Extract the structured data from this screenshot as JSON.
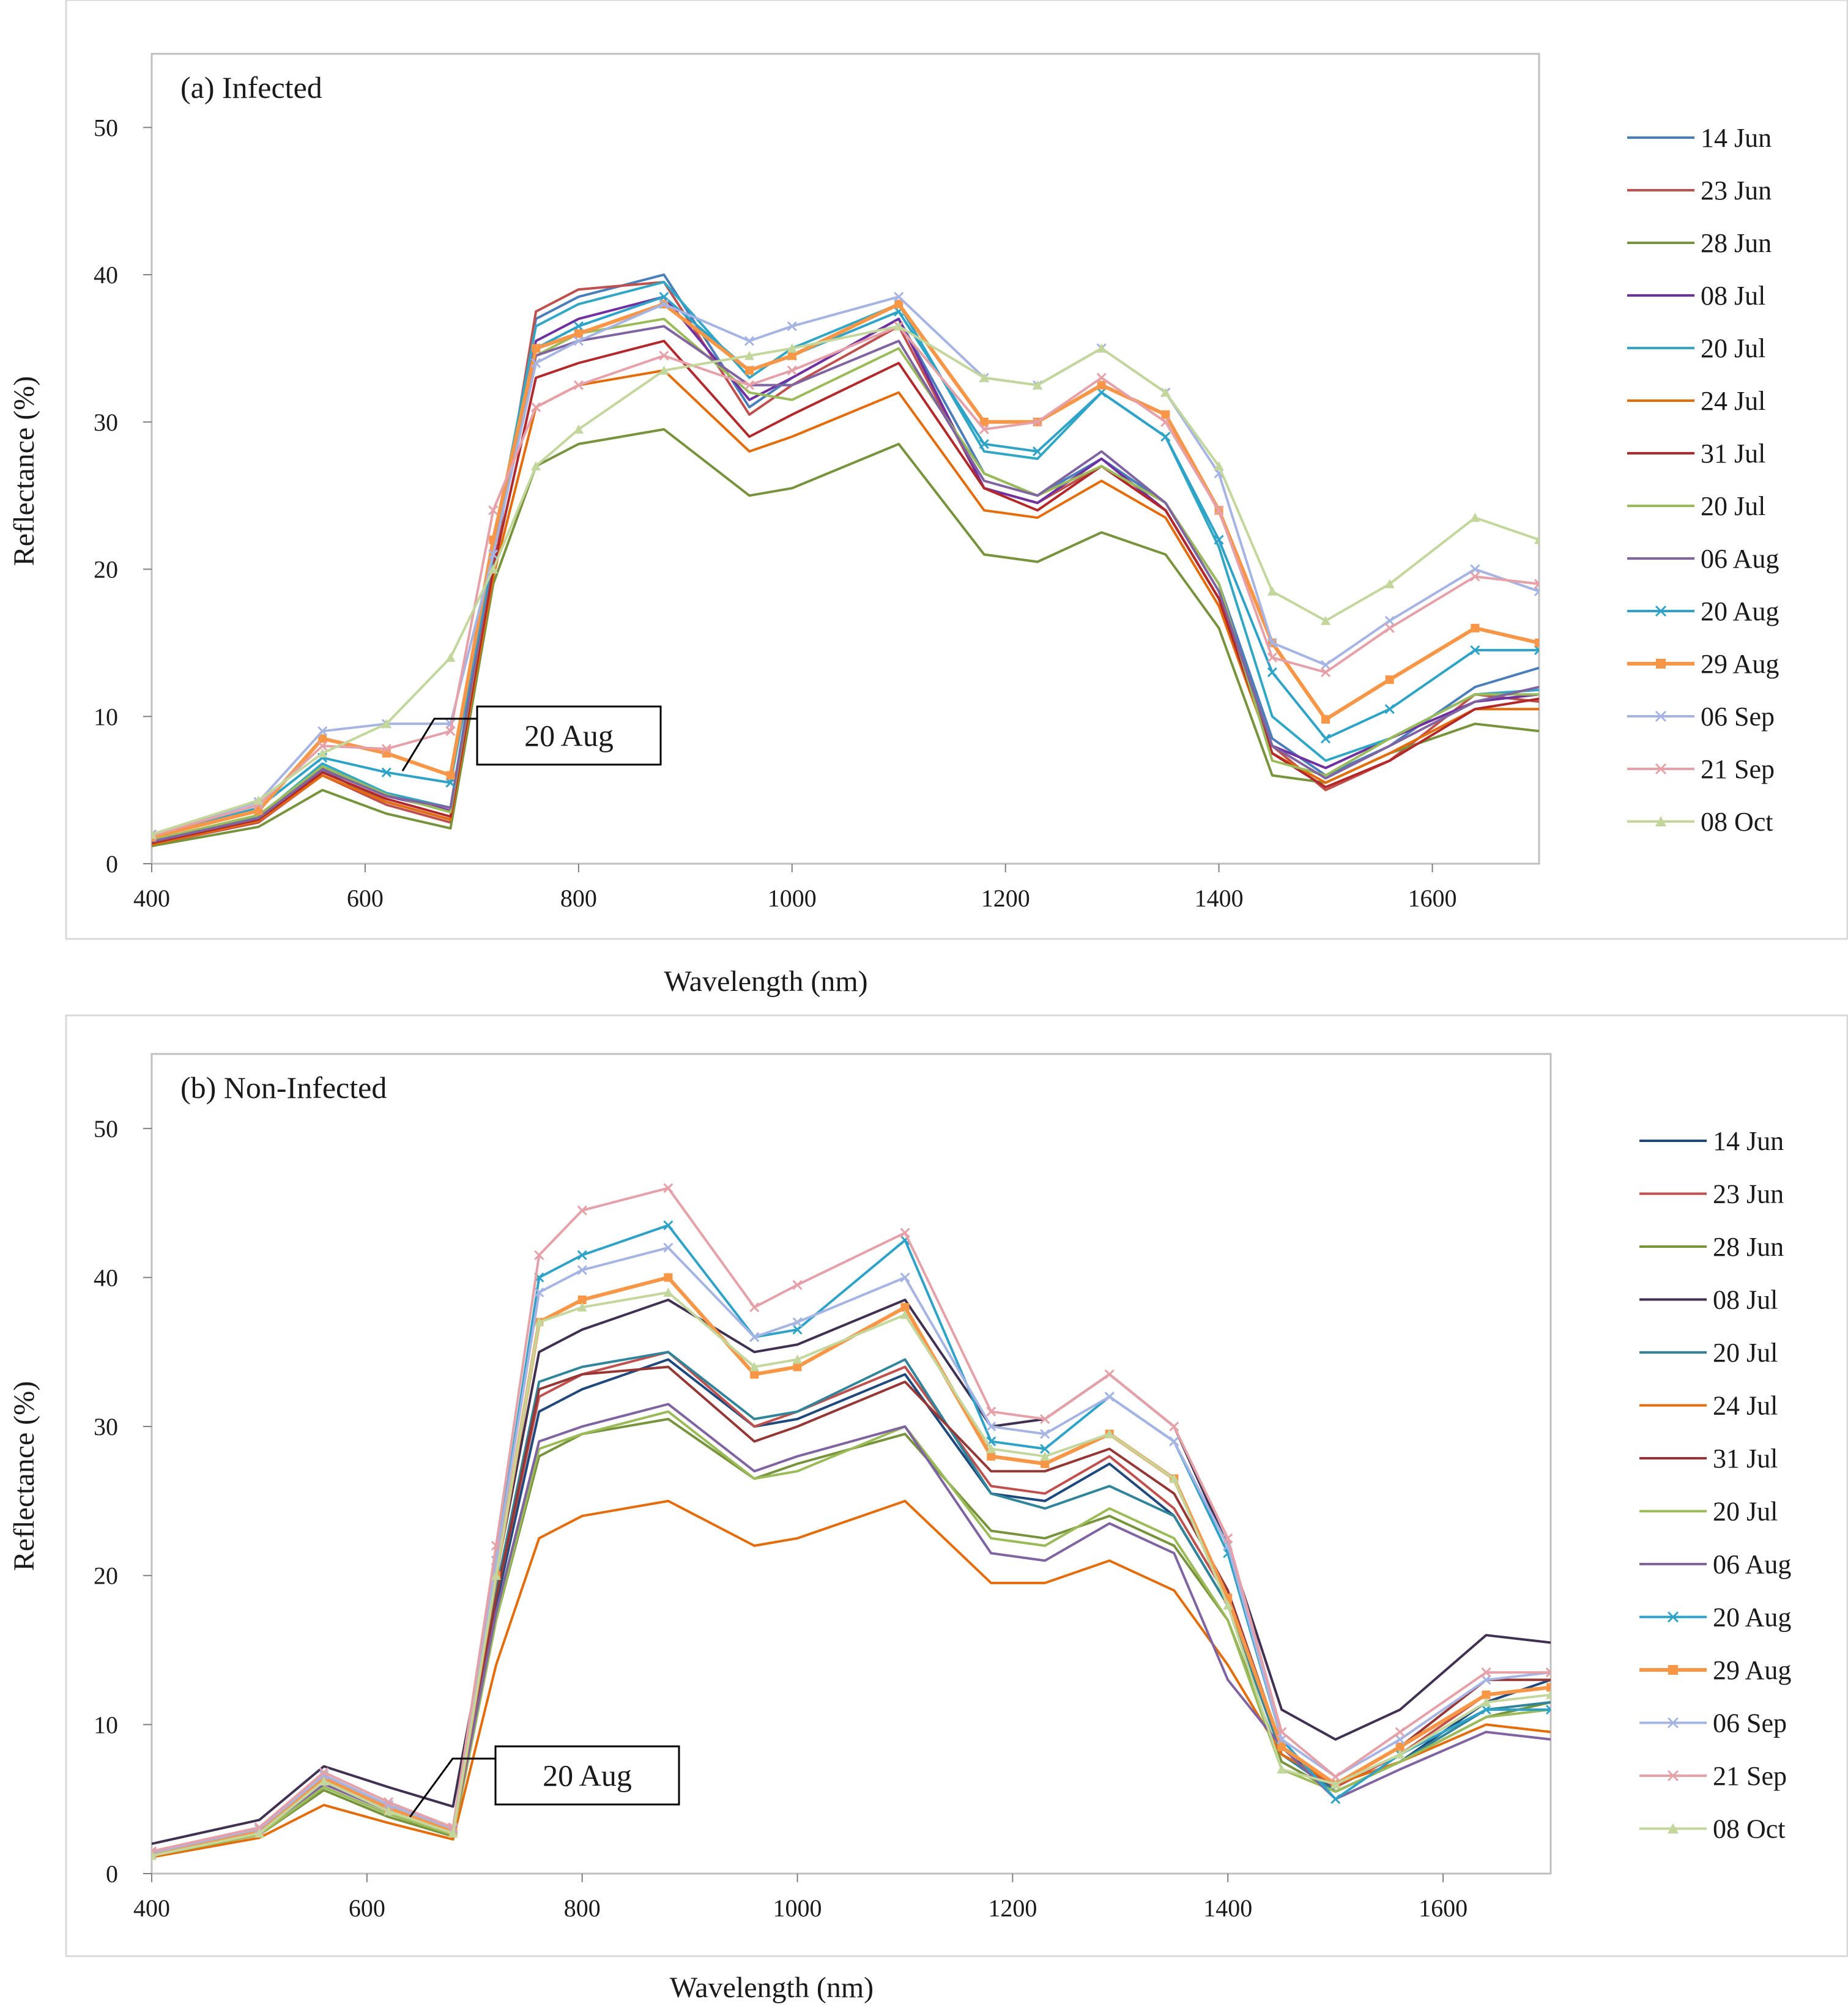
{
  "chart_data": [
    {
      "type": "line",
      "title": "(a) Infected",
      "xlabel": "Wavelength (nm)",
      "ylabel": "Reflectance (%)",
      "xlim": [
        400,
        1700
      ],
      "ylim": [
        0,
        55
      ],
      "x_ticks": [
        "400",
        "600",
        "800",
        "1000",
        "1200",
        "1400",
        "1600"
      ],
      "y_ticks": [
        "0",
        "10",
        "20",
        "30",
        "40",
        "50"
      ],
      "grid": false,
      "legend_position": "right",
      "annotation": {
        "text": "20 Aug",
        "x": 635,
        "y": 6.3
      },
      "x": [
        400,
        500,
        560,
        620,
        680,
        720,
        760,
        800,
        880,
        960,
        1000,
        1100,
        1180,
        1230,
        1290,
        1350,
        1400,
        1450,
        1500,
        1560,
        1640,
        1700
      ],
      "series": [
        {
          "name": "14 Jun",
          "color": "#4a7ebb",
          "marker": "none",
          "values": [
            1.5,
            3.0,
            6.3,
            4.2,
            3.0,
            20.0,
            37.0,
            38.5,
            40.0,
            31.0,
            33.0,
            37.0,
            26.5,
            25.0,
            27.5,
            24.5,
            19.0,
            8.5,
            6.0,
            8.0,
            12.0,
            13.3
          ]
        },
        {
          "name": "23 Jun",
          "color": "#c0504d",
          "marker": "none",
          "values": [
            1.3,
            2.8,
            6.0,
            4.0,
            2.8,
            20.0,
            37.5,
            39.0,
            39.5,
            30.5,
            32.5,
            36.5,
            25.5,
            24.5,
            27.0,
            24.0,
            18.0,
            8.0,
            5.0,
            7.0,
            11.5,
            11.0
          ]
        },
        {
          "name": "28 Jun",
          "color": "#77933c",
          "marker": "none",
          "values": [
            1.2,
            2.5,
            5.0,
            3.4,
            2.4,
            19.0,
            27.0,
            28.5,
            29.5,
            25.0,
            25.5,
            28.5,
            21.0,
            20.5,
            22.5,
            21.0,
            16.0,
            6.0,
            5.5,
            7.5,
            9.5,
            9.0
          ]
        },
        {
          "name": "08 Jul",
          "color": "#7030a0",
          "marker": "none",
          "values": [
            1.4,
            3.1,
            6.5,
            4.6,
            3.6,
            21.0,
            35.5,
            37.0,
            38.5,
            31.5,
            33.0,
            37.0,
            25.5,
            24.5,
            27.5,
            24.0,
            18.0,
            8.0,
            6.5,
            8.5,
            11.0,
            11.5
          ]
        },
        {
          "name": "20 Jul",
          "color": "#31a7c6",
          "marker": "none",
          "values": [
            1.6,
            3.2,
            6.8,
            4.8,
            3.8,
            21.5,
            36.5,
            38.0,
            39.5,
            33.0,
            35.0,
            38.0,
            28.0,
            27.5,
            32.0,
            29.0,
            21.5,
            10.0,
            7.0,
            8.5,
            11.5,
            11.8
          ]
        },
        {
          "name": "24 Jul",
          "color": "#e46c0a",
          "marker": "none",
          "values": [
            1.3,
            2.9,
            6.0,
            4.2,
            3.0,
            19.5,
            31.0,
            32.5,
            33.5,
            28.0,
            29.0,
            32.0,
            24.0,
            23.5,
            26.0,
            23.5,
            17.5,
            7.5,
            5.5,
            7.5,
            10.5,
            10.5
          ]
        },
        {
          "name": "31 Jul",
          "color": "#b3292b",
          "marker": "none",
          "values": [
            1.4,
            3.0,
            6.2,
            4.4,
            3.2,
            20.0,
            33.0,
            34.0,
            35.5,
            29.0,
            30.5,
            34.0,
            25.5,
            24.0,
            27.0,
            24.0,
            18.0,
            7.5,
            5.2,
            7.0,
            10.5,
            11.2
          ]
        },
        {
          "name": "20 Jul",
          "color": "#9bbb59",
          "marker": "none",
          "values": [
            1.6,
            3.3,
            6.6,
            4.7,
            3.5,
            21.0,
            34.5,
            36.0,
            37.0,
            32.0,
            31.5,
            35.0,
            26.5,
            25.0,
            27.0,
            24.5,
            19.0,
            7.0,
            6.0,
            8.5,
            11.5,
            11.5
          ]
        },
        {
          "name": "06 Aug",
          "color": "#8064a2",
          "marker": "none",
          "values": [
            1.5,
            3.1,
            6.4,
            4.6,
            3.8,
            21.0,
            34.5,
            35.5,
            36.5,
            32.5,
            32.5,
            35.5,
            26.0,
            25.0,
            28.0,
            24.5,
            18.5,
            8.0,
            5.8,
            8.0,
            11.0,
            12.0
          ]
        },
        {
          "name": "20 Aug",
          "color": "#2ea3c7",
          "marker": "x",
          "values": [
            1.8,
            3.8,
            7.2,
            6.2,
            5.5,
            21.0,
            35.0,
            36.5,
            38.5,
            33.5,
            34.5,
            37.5,
            28.5,
            28.0,
            32.0,
            29.0,
            22.0,
            13.0,
            8.5,
            10.5,
            14.5,
            14.5
          ]
        },
        {
          "name": "29 Aug",
          "color": "#f79646",
          "marker": "square",
          "values": [
            1.8,
            3.6,
            8.5,
            7.5,
            6.0,
            22.0,
            35.0,
            36.0,
            38.0,
            33.5,
            34.5,
            38.0,
            30.0,
            30.0,
            32.5,
            30.5,
            24.0,
            15.0,
            9.8,
            12.5,
            16.0,
            15.0
          ]
        },
        {
          "name": "06 Sep",
          "color": "#a5b4e3",
          "marker": "x",
          "values": [
            2.0,
            4.2,
            9.0,
            9.5,
            9.5,
            21.0,
            34.0,
            35.5,
            38.0,
            35.5,
            36.5,
            38.5,
            33.0,
            32.5,
            35.0,
            32.0,
            26.5,
            15.0,
            13.5,
            16.5,
            20.0,
            18.5
          ]
        },
        {
          "name": "21 Sep",
          "color": "#e6a0a8",
          "marker": "x",
          "values": [
            1.9,
            4.0,
            8.0,
            7.8,
            9.0,
            24.0,
            31.0,
            32.5,
            34.5,
            32.5,
            33.5,
            36.5,
            29.5,
            30.0,
            33.0,
            30.0,
            24.0,
            14.0,
            13.0,
            16.0,
            19.5,
            19.0
          ]
        },
        {
          "name": "08 Oct",
          "color": "#c3d69b",
          "marker": "triangle",
          "values": [
            2.0,
            4.3,
            7.5,
            9.5,
            14.0,
            20.0,
            27.0,
            29.5,
            33.5,
            34.5,
            35.0,
            36.5,
            33.0,
            32.5,
            35.0,
            32.0,
            27.0,
            18.5,
            16.5,
            19.0,
            23.5,
            22.0
          ]
        }
      ]
    },
    {
      "type": "line",
      "title": "(b) Non-Infected",
      "xlabel": "Wavelength (nm)",
      "ylabel": "Reflectance (%)",
      "xlim": [
        400,
        1700
      ],
      "ylim": [
        0,
        55
      ],
      "x_ticks": [
        "400",
        "600",
        "800",
        "1000",
        "1200",
        "1400",
        "1600"
      ],
      "y_ticks": [
        "0",
        "10",
        "20",
        "30",
        "40",
        "50"
      ],
      "grid": false,
      "legend_position": "right",
      "annotation": {
        "text": "20 Aug",
        "x": 640,
        "y": 3.8
      },
      "x": [
        400,
        500,
        560,
        620,
        680,
        720,
        760,
        800,
        880,
        960,
        1000,
        1100,
        1180,
        1230,
        1290,
        1350,
        1400,
        1450,
        1500,
        1560,
        1640,
        1700
      ],
      "series": [
        {
          "name": "14 Jun",
          "color": "#1f497d",
          "marker": "none",
          "values": [
            1.4,
            3.0,
            6.5,
            4.5,
            3.0,
            18.0,
            31.0,
            32.5,
            34.5,
            30.0,
            30.5,
            33.5,
            25.5,
            25.0,
            27.5,
            24.0,
            18.0,
            8.5,
            5.5,
            7.5,
            11.5,
            13.0
          ]
        },
        {
          "name": "23 Jun",
          "color": "#c0504d",
          "marker": "none",
          "values": [
            1.3,
            2.8,
            6.2,
            4.3,
            2.9,
            18.5,
            32.0,
            33.5,
            35.0,
            30.0,
            31.0,
            34.0,
            26.0,
            25.5,
            28.0,
            24.5,
            18.5,
            8.0,
            5.8,
            8.0,
            12.0,
            12.5
          ]
        },
        {
          "name": "28 Jun",
          "color": "#77933c",
          "marker": "none",
          "values": [
            1.2,
            2.6,
            5.6,
            3.8,
            2.5,
            17.0,
            28.0,
            29.5,
            30.5,
            26.5,
            27.5,
            29.5,
            23.0,
            22.5,
            24.0,
            22.0,
            17.0,
            7.5,
            5.5,
            7.5,
            10.5,
            11.5
          ]
        },
        {
          "name": "08 Jul",
          "color": "#403152",
          "marker": "none",
          "values": [
            2.0,
            3.6,
            7.2,
            5.8,
            4.5,
            20.0,
            35.0,
            36.5,
            38.5,
            35.0,
            35.5,
            38.5,
            30.0,
            30.5,
            33.5,
            30.0,
            22.0,
            11.0,
            9.0,
            11.0,
            16.0,
            15.5
          ]
        },
        {
          "name": "20 Jul",
          "color": "#31859b",
          "marker": "none",
          "values": [
            1.4,
            3.0,
            6.4,
            4.4,
            3.1,
            19.0,
            33.0,
            34.0,
            35.0,
            30.5,
            31.0,
            34.5,
            25.5,
            24.5,
            26.0,
            24.0,
            18.0,
            8.0,
            5.5,
            7.5,
            11.0,
            11.5
          ]
        },
        {
          "name": "24 Jul",
          "color": "#e46c0a",
          "marker": "none",
          "values": [
            1.1,
            2.4,
            4.6,
            3.4,
            2.3,
            14.0,
            22.5,
            24.0,
            25.0,
            22.0,
            22.5,
            25.0,
            19.5,
            19.5,
            21.0,
            19.0,
            14.0,
            8.0,
            6.0,
            7.5,
            10.0,
            9.5
          ]
        },
        {
          "name": "31 Jul",
          "color": "#953735",
          "marker": "none",
          "values": [
            1.3,
            2.8,
            6.3,
            4.4,
            3.0,
            18.5,
            32.5,
            33.5,
            34.0,
            29.0,
            30.0,
            33.0,
            27.0,
            27.0,
            28.5,
            25.5,
            19.0,
            8.5,
            6.0,
            8.5,
            13.0,
            13.0
          ]
        },
        {
          "name": "20 Jul",
          "color": "#9bbb59",
          "marker": "none",
          "values": [
            1.2,
            2.6,
            5.8,
            4.0,
            2.6,
            17.0,
            28.5,
            29.5,
            31.0,
            26.5,
            27.0,
            30.0,
            22.5,
            22.0,
            24.5,
            22.5,
            17.0,
            7.0,
            5.5,
            7.5,
            10.5,
            11.0
          ]
        },
        {
          "name": "06 Aug",
          "color": "#8064a2",
          "marker": "none",
          "values": [
            1.3,
            2.8,
            6.0,
            4.2,
            2.8,
            17.5,
            29.0,
            30.0,
            31.5,
            27.0,
            28.0,
            30.0,
            21.5,
            21.0,
            23.5,
            21.5,
            13.0,
            8.5,
            5.0,
            7.0,
            9.5,
            9.0
          ]
        },
        {
          "name": "20 Aug",
          "color": "#2ea3c7",
          "marker": "x",
          "values": [
            1.4,
            3.0,
            6.6,
            4.6,
            3.0,
            21.0,
            40.0,
            41.5,
            43.5,
            36.0,
            36.5,
            42.5,
            29.0,
            28.5,
            32.0,
            29.0,
            21.5,
            9.0,
            5.0,
            8.0,
            11.0,
            11.0
          ]
        },
        {
          "name": "29 Aug",
          "color": "#f79646",
          "marker": "square",
          "values": [
            1.3,
            2.8,
            6.4,
            4.4,
            2.8,
            20.0,
            37.0,
            38.5,
            40.0,
            33.5,
            34.0,
            38.0,
            28.0,
            27.5,
            29.5,
            26.5,
            18.5,
            8.5,
            6.0,
            8.5,
            12.0,
            12.5
          ]
        },
        {
          "name": "06 Sep",
          "color": "#a5b4e3",
          "marker": "x",
          "values": [
            1.4,
            3.0,
            6.6,
            4.6,
            3.0,
            21.0,
            39.0,
            40.5,
            42.0,
            36.0,
            37.0,
            40.0,
            30.0,
            29.5,
            32.0,
            29.0,
            22.0,
            9.0,
            6.5,
            9.0,
            13.0,
            13.5
          ]
        },
        {
          "name": "21 Sep",
          "color": "#e6a0a8",
          "marker": "x",
          "values": [
            1.5,
            3.1,
            6.8,
            4.8,
            3.1,
            22.0,
            41.5,
            44.5,
            46.0,
            38.0,
            39.5,
            43.0,
            31.0,
            30.5,
            33.5,
            30.0,
            22.5,
            9.5,
            6.5,
            9.5,
            13.5,
            13.5
          ]
        },
        {
          "name": "08 Oct",
          "color": "#c3d69b",
          "marker": "triangle",
          "values": [
            1.2,
            2.7,
            6.2,
            4.2,
            2.7,
            20.0,
            37.0,
            38.0,
            39.0,
            34.0,
            34.5,
            37.5,
            28.5,
            28.0,
            29.5,
            26.5,
            18.0,
            7.0,
            6.0,
            8.0,
            11.5,
            12.0
          ]
        }
      ]
    }
  ]
}
